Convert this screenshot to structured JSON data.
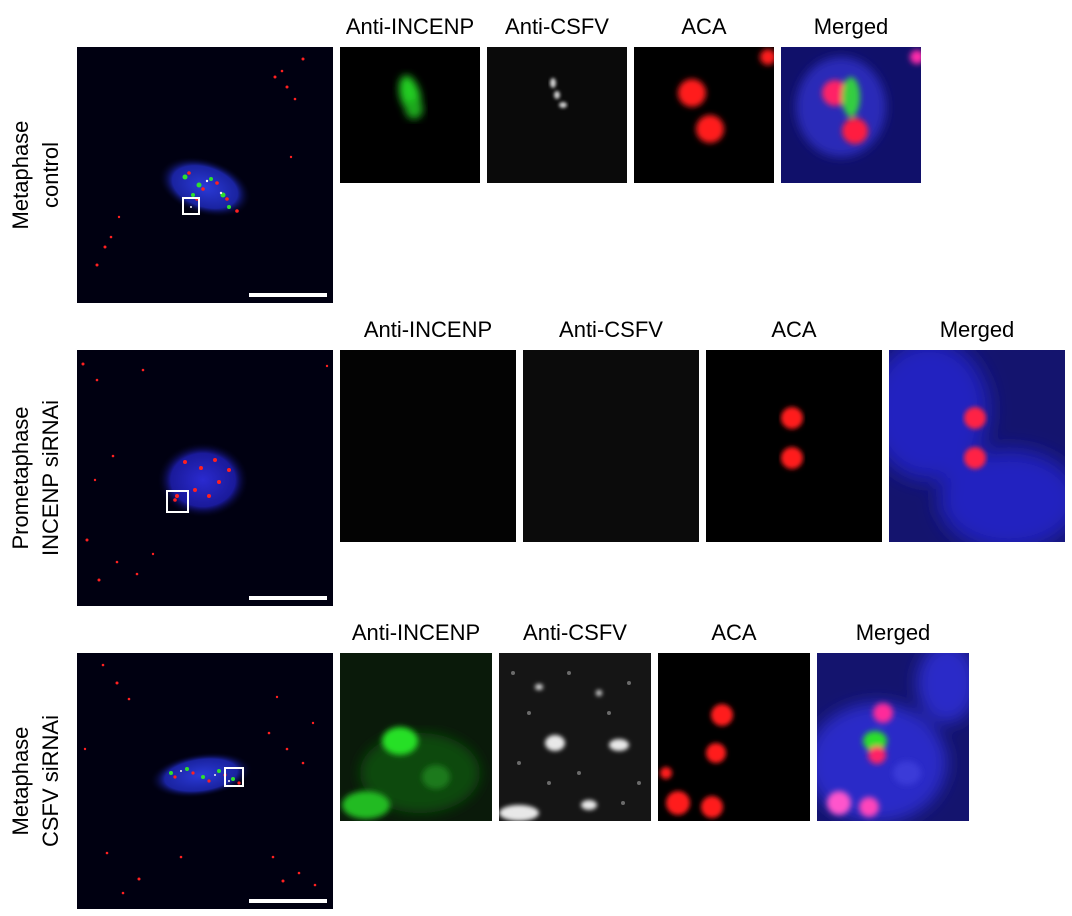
{
  "rows": [
    {
      "label_line1": "Metaphase",
      "label_line2": "control",
      "col1": "Anti-INCENP",
      "col2": "Anti-CSFV",
      "col3": "ACA",
      "col4": "Merged"
    },
    {
      "label_line1": "Prometaphase",
      "label_line2": "INCENP siRNAi",
      "col1": "Anti-INCENP",
      "col2": "Anti-CSFV",
      "col3": "ACA",
      "col4": "Merged"
    },
    {
      "label_line1": "Metaphase",
      "label_line2": "CSFV siRNAi",
      "col1": "Anti-INCENP",
      "col2": "Anti-CSFV",
      "col3": "ACA",
      "col4": "Merged"
    }
  ],
  "colors": {
    "incenp": "#22dd22",
    "csfv": "#e6e6e6",
    "aca": "#ff1a1a",
    "dna": "#1a1ab4",
    "background": "#000000"
  }
}
